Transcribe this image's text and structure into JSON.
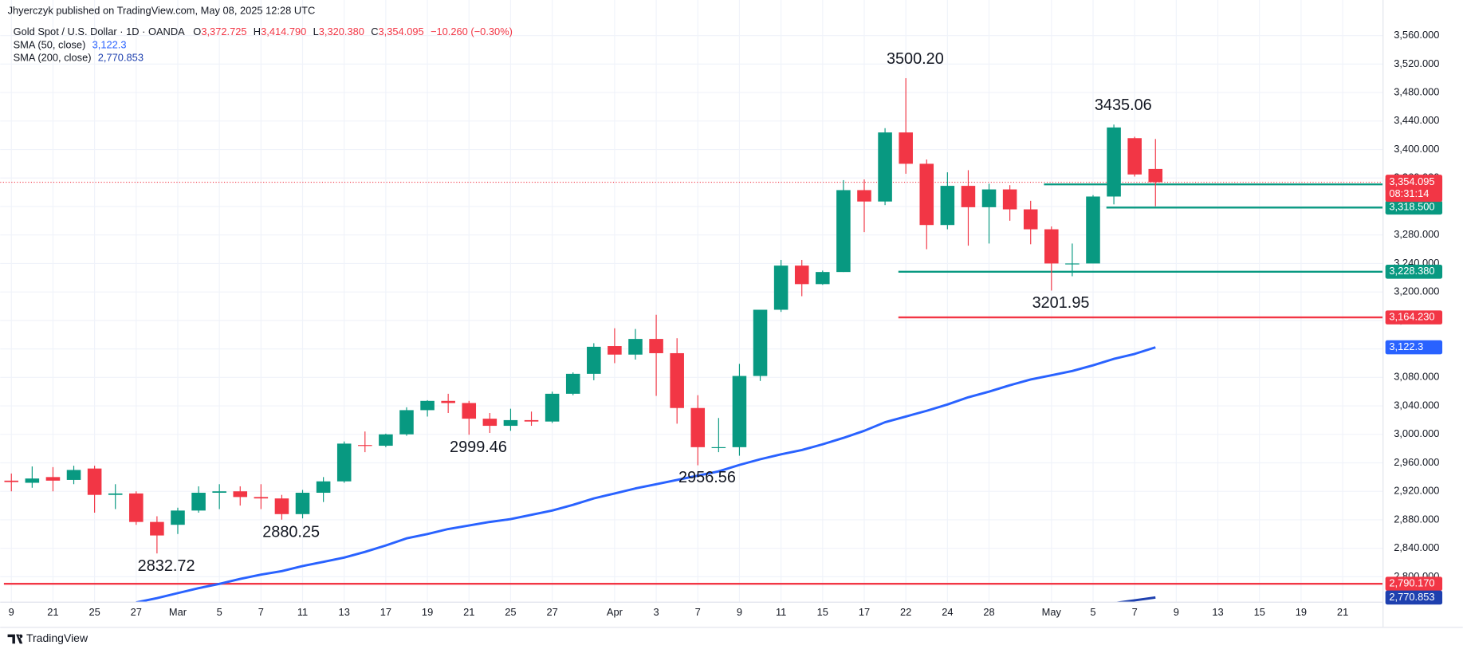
{
  "header": {
    "published": "Jhyerczyk published on TradingView.com, May 08, 2025 12:28 UTC",
    "symbol": "Gold Spot / U.S. Dollar · 1D · OANDA",
    "ohlc": [
      {
        "key": "O",
        "value": "3,372.725"
      },
      {
        "key": "H",
        "value": "3,414.790"
      },
      {
        "key": "L",
        "value": "3,320.380"
      },
      {
        "key": "C",
        "value": "3,354.095"
      }
    ],
    "change": "−10.260 (−0.30%)"
  },
  "chart_data": {
    "type": "candlestick",
    "categories": [
      "9",
      null,
      "21",
      null,
      "25",
      null,
      "27",
      null,
      "Mar",
      null,
      "5",
      null,
      "7",
      null,
      "11",
      null,
      "13",
      null,
      "17",
      null,
      "19",
      null,
      "21",
      null,
      "25",
      null,
      "27",
      null,
      null,
      "Apr",
      null,
      "3",
      null,
      "7",
      null,
      "9",
      null,
      "11",
      null,
      "15",
      null,
      "17",
      null,
      "22",
      null,
      "24",
      null,
      "28",
      null,
      null,
      "May",
      null,
      "5",
      null,
      "7",
      null,
      "9",
      null,
      "13",
      null,
      "15",
      null,
      "19",
      null,
      "21",
      null
    ],
    "open": [
      2935,
      2932,
      2940,
      2936,
      2952,
      2915,
      2917,
      2877,
      2873,
      2893,
      2918,
      2920,
      2912,
      2910,
      2888,
      2918,
      2934,
      2985,
      2984,
      3000,
      3034,
      3047,
      3044,
      3022,
      3012,
      3020,
      3018,
      3057,
      3085,
      3124,
      3112,
      3134,
      3114,
      3037,
      2982,
      2982,
      3082,
      3175,
      3237,
      3211,
      3228,
      3343,
      3327,
      3424,
      3380,
      3294,
      3349,
      3319,
      3344,
      3316,
      3288,
      3240,
      3240,
      3334,
      3416,
      3372.725,
      null,
      null,
      null,
      null,
      null,
      null,
      null,
      null,
      null,
      null
    ],
    "high": [
      2945,
      2955,
      2954,
      2956,
      2956,
      2930,
      2920,
      2885,
      2897,
      2927,
      2930,
      2927,
      2930,
      2915,
      2922,
      2940,
      2990,
      3004,
      3001,
      3038,
      3048,
      3057,
      3047,
      3030,
      3036,
      3032,
      3060,
      3087,
      3128,
      3149,
      3148,
      3168,
      3135,
      3055,
      3023,
      3099,
      3175,
      3245,
      3245,
      3230,
      3357,
      3358,
      3430,
      3500.2,
      3386,
      3368,
      3371,
      3352,
      3350,
      3328,
      3292,
      3268,
      3336,
      3435.06,
      3418,
      3414.79,
      null,
      null,
      null,
      null,
      null,
      null,
      null,
      null,
      null,
      null
    ],
    "low": [
      2920,
      2925,
      2920,
      2930,
      2890,
      2895,
      2873,
      2832.72,
      2860,
      2890,
      2895,
      2900,
      2895,
      2880.25,
      2882,
      2905,
      2932,
      2975,
      2982,
      2998,
      3025,
      3030,
      2999.46,
      3002,
      3005,
      3012,
      3016,
      3055,
      3076,
      3100,
      3105,
      3054,
      3015,
      2956.56,
      2975,
      2970,
      3075,
      3172,
      3194,
      3210,
      3228,
      3284,
      3322,
      3366,
      3260,
      3288,
      3265,
      3268,
      3300,
      3267,
      3201.95,
      3222,
      3240,
      3323,
      3362,
      3320.38,
      null,
      null,
      null,
      null,
      null,
      null,
      null,
      null,
      null,
      null
    ],
    "close": [
      2933,
      2938,
      2935,
      2950,
      2915,
      2917,
      2877,
      2858,
      2893,
      2918,
      2920,
      2912,
      2910,
      2888,
      2918,
      2934,
      2987,
      2984,
      3000,
      3034,
      3047,
      3044,
      3022,
      3012,
      3020,
      3018,
      3057,
      3085,
      3123,
      3112,
      3134,
      3114,
      3037,
      2982,
      2982,
      3082,
      3175,
      3237,
      3211,
      3228,
      3343,
      3327,
      3424,
      3380,
      3294,
      3349,
      3319,
      3344,
      3316,
      3288,
      3240,
      3240,
      3334,
      3431,
      3365,
      3354.095,
      null,
      null,
      null,
      null,
      null,
      null,
      null,
      null,
      null,
      null
    ],
    "up_color": "#089981",
    "down_color": "#f23645",
    "ylim": [
      2765,
      3610
    ],
    "yticks": [
      {
        "value": 3560,
        "label": "3,560.000"
      },
      {
        "value": 3520,
        "label": "3,520.000"
      },
      {
        "value": 3480,
        "label": "3,480.000"
      },
      {
        "value": 3440,
        "label": "3,440.000"
      },
      {
        "value": 3400,
        "label": "3,400.000"
      },
      {
        "value": 3360,
        "label": "3,360.000"
      },
      {
        "value": 3320,
        "label": "3,320.000"
      },
      {
        "value": 3280,
        "label": "3,280.000"
      },
      {
        "value": 3240,
        "label": "3,240.000"
      },
      {
        "value": 3200,
        "label": "3,200.000"
      },
      {
        "value": 3160,
        "label": "3,160.000"
      },
      {
        "value": 3120,
        "label": "3,120.000"
      },
      {
        "value": 3080,
        "label": "3,080.000"
      },
      {
        "value": 3040,
        "label": "3,040.000"
      },
      {
        "value": 3000,
        "label": "3,000.000"
      },
      {
        "value": 2960,
        "label": "2,960.000"
      },
      {
        "value": 2920,
        "label": "2,920.000"
      },
      {
        "value": 2880,
        "label": "2,880.000"
      },
      {
        "value": 2840,
        "label": "2,840.000"
      },
      {
        "value": 2800,
        "label": "2,800.000"
      }
    ],
    "grid": true,
    "lines": [
      {
        "name": "SMA (50, close)",
        "color": "#2962ff",
        "value_label": "3,122.3",
        "values": [
          null,
          null,
          null,
          null,
          null,
          null,
          2764,
          2770,
          2777,
          2784,
          2790,
          2797,
          2803,
          2808,
          2815,
          2821,
          2827,
          2835,
          2844,
          2854,
          2860,
          2867,
          2872,
          2877,
          2881,
          2887,
          2893,
          2901,
          2910,
          2917,
          2924,
          2930,
          2936,
          2942,
          2948,
          2957,
          2965,
          2972,
          2978,
          2986,
          2995,
          3005,
          3017,
          3025,
          3033,
          3042,
          3052,
          3060,
          3069,
          3077,
          3083,
          3089,
          3097,
          3106,
          3113,
          3122.3,
          null,
          null,
          null,
          null,
          null,
          null,
          null,
          null,
          null,
          null
        ]
      },
      {
        "name": "SMA (200, close)",
        "color": "#1e40af",
        "value_label": "2,770.853",
        "values": [
          null,
          null,
          null,
          null,
          null,
          null,
          null,
          null,
          null,
          null,
          null,
          null,
          null,
          null,
          null,
          null,
          null,
          null,
          null,
          null,
          null,
          null,
          null,
          null,
          null,
          null,
          null,
          null,
          null,
          null,
          null,
          null,
          null,
          null,
          null,
          null,
          null,
          null,
          null,
          null,
          null,
          null,
          null,
          null,
          null,
          null,
          null,
          null,
          null,
          null,
          null,
          null,
          null,
          2763,
          2767,
          2770.853,
          null,
          null,
          null,
          null,
          null,
          null,
          null,
          null,
          null,
          null
        ]
      }
    ],
    "levels": [
      {
        "value": 3351.08,
        "label": "3,351.080",
        "color": "#089981"
      },
      {
        "value": 3318.5,
        "label": "3,318.500",
        "color": "#089981"
      },
      {
        "value": 3228.38,
        "label": "3,228.380",
        "color": "#089981"
      },
      {
        "value": 3164.23,
        "label": "3,164.230",
        "color": "#f23645"
      },
      {
        "value": 2790.17,
        "label": "2,790.170",
        "color": "#f23645"
      }
    ],
    "last_price": {
      "value": 3354.095,
      "label": "3,354.095",
      "countdown": "08:31:14",
      "color": "#f23645"
    },
    "annotations": [
      {
        "value": 3500.2,
        "label": "3500.20"
      },
      {
        "value": 3435.06,
        "label": "3435.06"
      },
      {
        "value": 3201.95,
        "label": "3201.95"
      },
      {
        "value": 2999.46,
        "label": "2999.46"
      },
      {
        "value": 2956.56,
        "label": "2956.56"
      },
      {
        "value": 2880.25,
        "label": "2880.25"
      },
      {
        "value": 2832.72,
        "label": "2832.72"
      }
    ]
  },
  "footer": "TradingView"
}
